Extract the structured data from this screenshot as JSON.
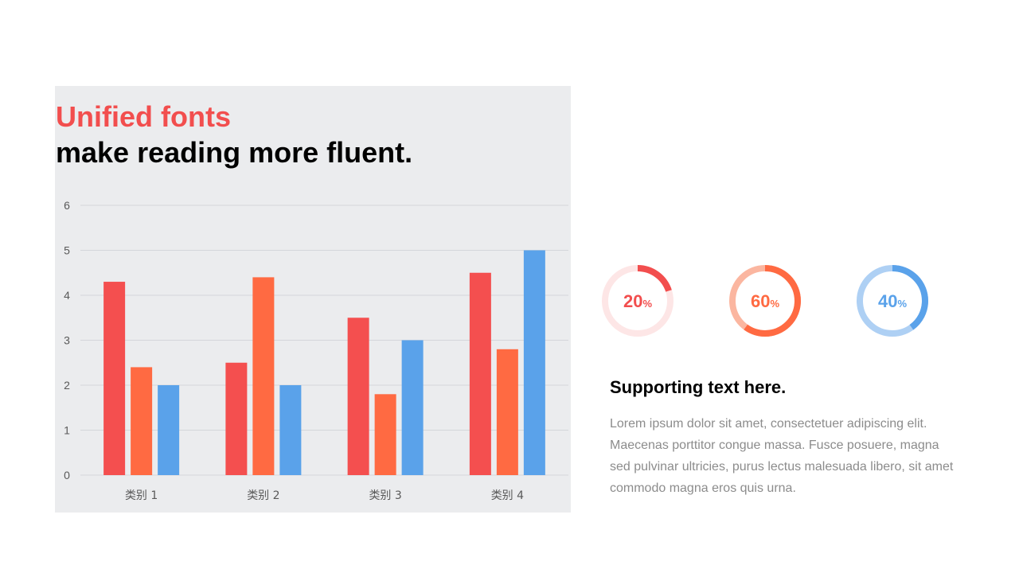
{
  "slide": {
    "title_accent": "Unified fonts",
    "title_main": "make reading more fluent.",
    "support_title": "Supporting text here.",
    "support_body": "Lorem ipsum dolor sit amet, consectetuer adipiscing elit. Maecenas porttitor congue massa. Fusce posuere, magna sed pulvinar ultricies, purus lectus malesuada libero, sit amet commodo magna eros quis urna."
  },
  "colors": {
    "accent_red": "#f24e4e",
    "series1": "#f44f4f",
    "series2": "#ff6a42",
    "series3": "#5aa2ea",
    "panel_bg": "#ebecee",
    "grid": "#d4d6da"
  },
  "chart_data": {
    "type": "bar",
    "categories": [
      "类别 1",
      "类别 2",
      "类别 3",
      "类别 4"
    ],
    "series": [
      {
        "values": [
          4.3,
          2.5,
          3.5,
          4.5
        ],
        "color": "#f44f4f"
      },
      {
        "values": [
          2.4,
          4.4,
          1.8,
          2.8
        ],
        "color": "#ff6a42"
      },
      {
        "values": [
          2.0,
          2.0,
          3.0,
          5.0
        ],
        "color": "#5aa2ea"
      }
    ],
    "ylim": [
      0,
      6
    ],
    "yticks": [
      0,
      1,
      2,
      3,
      4,
      5,
      6
    ],
    "grid": true,
    "legend": "none"
  },
  "donuts": [
    {
      "value": 20,
      "label": "20",
      "unit": "%",
      "color": "#f24e4e",
      "track": "#fde6e6"
    },
    {
      "value": 60,
      "label": "60",
      "unit": "%",
      "color": "#ff6a42",
      "track": "#fbb6a0"
    },
    {
      "value": 40,
      "label": "40",
      "unit": "%",
      "color": "#5aa2ea",
      "track": "#aed0f4"
    }
  ]
}
